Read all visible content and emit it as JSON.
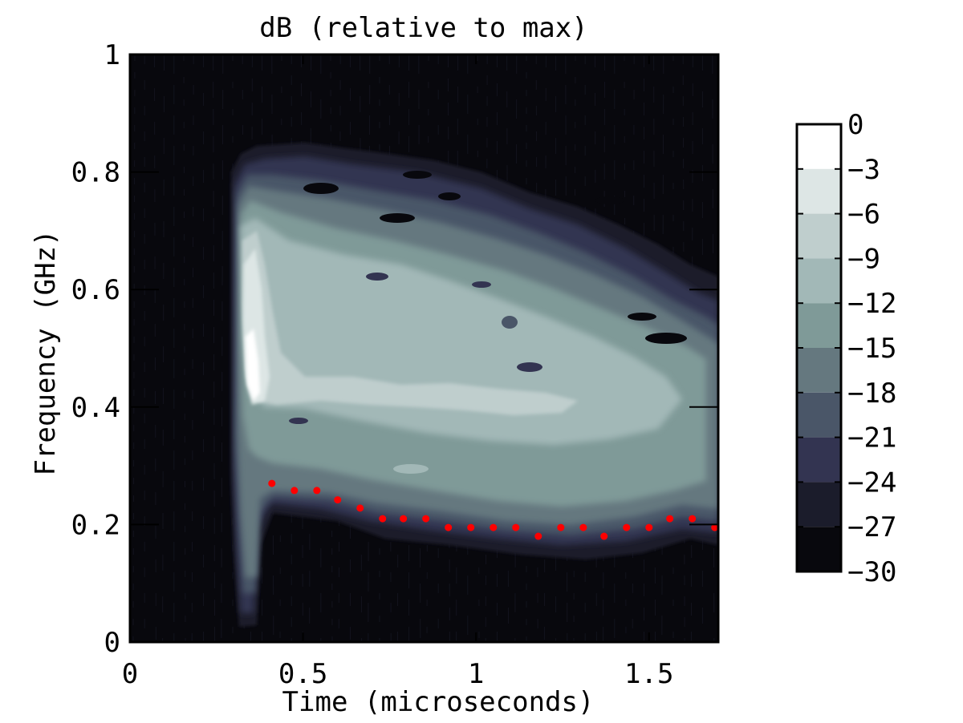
{
  "chart_data": {
    "type": "heatmap",
    "title": "dB (relative to max)",
    "xlabel": "Time (microseconds)",
    "ylabel": "Frequency (GHz)",
    "xlim": [
      0,
      1.7
    ],
    "ylim": [
      0,
      1
    ],
    "x_ticks": [
      {
        "value": 0,
        "label": "0"
      },
      {
        "value": 0.5,
        "label": "0.5"
      },
      {
        "value": 1,
        "label": "1"
      },
      {
        "value": 1.5,
        "label": "1.5"
      }
    ],
    "y_ticks": [
      {
        "value": 0,
        "label": "0"
      },
      {
        "value": 0.2,
        "label": "0.2"
      },
      {
        "value": 0.4,
        "label": "0.4"
      },
      {
        "value": 0.6,
        "label": "0.6"
      },
      {
        "value": 0.8,
        "label": "0.8"
      },
      {
        "value": 1,
        "label": "1"
      }
    ],
    "colorbar": {
      "ticks": [
        {
          "value": 0,
          "label": "0"
        },
        {
          "value": -3,
          "label": "−3"
        },
        {
          "value": -6,
          "label": "−6"
        },
        {
          "value": -9,
          "label": "−9"
        },
        {
          "value": -12,
          "label": "−12"
        },
        {
          "value": -15,
          "label": "−15"
        },
        {
          "value": -18,
          "label": "−18"
        },
        {
          "value": -21,
          "label": "−21"
        },
        {
          "value": -24,
          "label": "−24"
        },
        {
          "value": -27,
          "label": "−27"
        },
        {
          "value": -30,
          "label": "−30"
        }
      ],
      "levels": [
        {
          "from": -3,
          "to": 0,
          "color": "#ffffff"
        },
        {
          "from": -6,
          "to": -3,
          "color": "#dde6e5"
        },
        {
          "from": -9,
          "to": -6,
          "color": "#bfcecd"
        },
        {
          "from": -12,
          "to": -9,
          "color": "#a2b8b7"
        },
        {
          "from": -15,
          "to": -12,
          "color": "#7f9a98"
        },
        {
          "from": -18,
          "to": -15,
          "color": "#65787f"
        },
        {
          "from": -21,
          "to": -18,
          "color": "#4a5668"
        },
        {
          "from": -24,
          "to": -21,
          "color": "#333451"
        },
        {
          "from": -27,
          "to": -24,
          "color": "#1b1c2b"
        },
        {
          "from": -30,
          "to": -27,
          "color": "#08080d"
        }
      ]
    },
    "marker_series": {
      "color": "#ff0000",
      "points": [
        [
          0.41,
          0.27
        ],
        [
          0.475,
          0.258
        ],
        [
          0.54,
          0.258
        ],
        [
          0.6,
          0.242
        ],
        [
          0.665,
          0.228
        ],
        [
          0.73,
          0.21
        ],
        [
          0.79,
          0.21
        ],
        [
          0.855,
          0.21
        ],
        [
          0.92,
          0.195
        ],
        [
          0.985,
          0.195
        ],
        [
          1.05,
          0.195
        ],
        [
          1.115,
          0.195
        ],
        [
          1.18,
          0.18
        ],
        [
          1.245,
          0.195
        ],
        [
          1.31,
          0.195
        ],
        [
          1.37,
          0.18
        ],
        [
          1.435,
          0.195
        ],
        [
          1.5,
          0.195
        ],
        [
          1.56,
          0.21
        ],
        [
          1.625,
          0.21
        ],
        [
          1.69,
          0.195
        ]
      ]
    }
  }
}
